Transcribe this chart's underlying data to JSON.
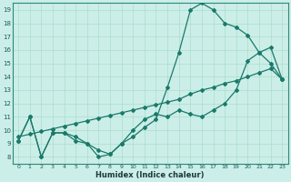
{
  "xlabel": "Humidex (Indice chaleur)",
  "bg_color": "#cceee8",
  "grid_color": "#aaddcc",
  "line_color": "#1a7a6a",
  "xlim": [
    -0.5,
    23.5
  ],
  "ylim": [
    7.5,
    19.5
  ],
  "xticks": [
    0,
    1,
    2,
    3,
    4,
    5,
    6,
    7,
    8,
    9,
    10,
    11,
    12,
    13,
    14,
    15,
    16,
    17,
    18,
    19,
    20,
    21,
    22,
    23
  ],
  "yticks": [
    8,
    9,
    10,
    11,
    12,
    13,
    14,
    15,
    16,
    17,
    18,
    19
  ],
  "line1_x": [
    0,
    1,
    2,
    3,
    4,
    5,
    6,
    7,
    8,
    9,
    10,
    11,
    12,
    13,
    14,
    15,
    16,
    17,
    18,
    19,
    20,
    21,
    22,
    23
  ],
  "line1_y": [
    9.2,
    11.0,
    8.0,
    9.8,
    9.8,
    9.2,
    9.0,
    8.0,
    8.2,
    9.0,
    9.5,
    10.2,
    10.8,
    13.2,
    15.8,
    19.0,
    19.5,
    19.0,
    18.0,
    17.7,
    17.1,
    15.8,
    15.0,
    13.8
  ],
  "line2_x": [
    0,
    1,
    2,
    3,
    4,
    5,
    6,
    7,
    8,
    9,
    10,
    11,
    12,
    13,
    14,
    15,
    16,
    17,
    18,
    19,
    20,
    21,
    22,
    23
  ],
  "line2_y": [
    9.2,
    11.0,
    8.0,
    9.8,
    9.8,
    9.5,
    9.0,
    8.5,
    8.2,
    9.0,
    10.0,
    10.8,
    11.2,
    11.0,
    11.5,
    11.2,
    11.0,
    11.5,
    12.0,
    13.0,
    15.2,
    15.8,
    16.2,
    13.8
  ],
  "line3_x": [
    0,
    1,
    2,
    3,
    4,
    5,
    6,
    7,
    8,
    9,
    10,
    11,
    12,
    13,
    14,
    15,
    16,
    17,
    18,
    19,
    20,
    21,
    22,
    23
  ],
  "line3_y": [
    9.5,
    9.7,
    9.9,
    10.1,
    10.3,
    10.5,
    10.7,
    10.9,
    11.1,
    11.3,
    11.5,
    11.7,
    11.9,
    12.1,
    12.3,
    12.7,
    13.0,
    13.2,
    13.5,
    13.7,
    14.0,
    14.3,
    14.6,
    13.8
  ]
}
